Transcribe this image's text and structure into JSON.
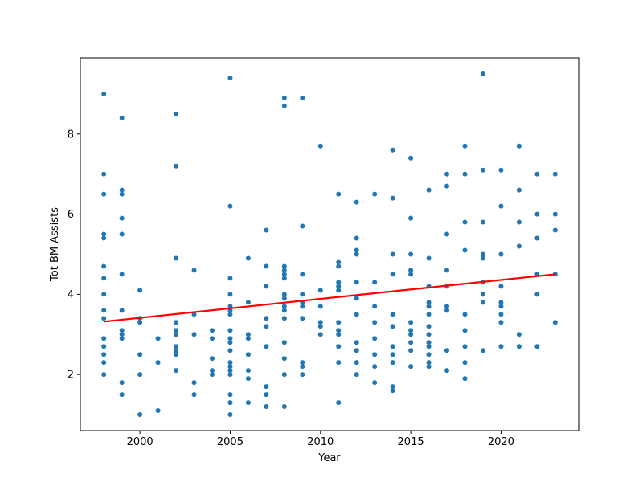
{
  "chart_data": {
    "type": "scatter",
    "title": "",
    "xlabel": "Year",
    "ylabel": "Tot BM Assists",
    "xlim": [
      1996.7,
      2024.3
    ],
    "ylim": [
      0.6,
      9.9
    ],
    "xticks": [
      2000,
      2005,
      2010,
      2015,
      2020
    ],
    "yticks": [
      2,
      4,
      6,
      8
    ],
    "grid": false,
    "colors": {
      "points": "#1f77b4",
      "trend": "#ff0000"
    },
    "trend_line": {
      "x": [
        1998,
        2023
      ],
      "y": [
        3.32,
        4.5
      ]
    },
    "points": [
      [
        1998,
        9.0
      ],
      [
        1998,
        7.0
      ],
      [
        1998,
        6.5
      ],
      [
        1998,
        5.5
      ],
      [
        1998,
        5.4
      ],
      [
        1998,
        4.7
      ],
      [
        1998,
        4.4
      ],
      [
        1998,
        4.0
      ],
      [
        1998,
        3.6
      ],
      [
        1998,
        3.4
      ],
      [
        1998,
        2.9
      ],
      [
        1998,
        2.7
      ],
      [
        1998,
        2.5
      ],
      [
        1998,
        2.3
      ],
      [
        1998,
        2.0
      ],
      [
        1999,
        8.4
      ],
      [
        1999,
        6.6
      ],
      [
        1999,
        6.5
      ],
      [
        1999,
        5.9
      ],
      [
        1999,
        5.5
      ],
      [
        1999,
        4.5
      ],
      [
        1999,
        3.6
      ],
      [
        1999,
        3.1
      ],
      [
        1999,
        3.0
      ],
      [
        1999,
        2.9
      ],
      [
        1999,
        1.8
      ],
      [
        1999,
        1.5
      ],
      [
        2000,
        4.1
      ],
      [
        2000,
        3.4
      ],
      [
        2000,
        3.3
      ],
      [
        2000,
        2.5
      ],
      [
        2000,
        2.0
      ],
      [
        2000,
        1.0
      ],
      [
        2001,
        2.9
      ],
      [
        2001,
        2.3
      ],
      [
        2001,
        1.1
      ],
      [
        2002,
        8.5
      ],
      [
        2002,
        7.2
      ],
      [
        2002,
        4.9
      ],
      [
        2002,
        3.3
      ],
      [
        2002,
        3.1
      ],
      [
        2002,
        3.0
      ],
      [
        2002,
        2.7
      ],
      [
        2002,
        2.6
      ],
      [
        2002,
        2.5
      ],
      [
        2002,
        2.1
      ],
      [
        2003,
        4.6
      ],
      [
        2003,
        3.5
      ],
      [
        2003,
        3.0
      ],
      [
        2003,
        1.8
      ],
      [
        2003,
        1.5
      ],
      [
        2004,
        3.1
      ],
      [
        2004,
        2.9
      ],
      [
        2004,
        2.4
      ],
      [
        2004,
        2.1
      ],
      [
        2004,
        2.0
      ],
      [
        2005,
        9.4
      ],
      [
        2005,
        6.2
      ],
      [
        2005,
        4.4
      ],
      [
        2005,
        4.0
      ],
      [
        2005,
        3.7
      ],
      [
        2005,
        3.6
      ],
      [
        2005,
        3.5
      ],
      [
        2005,
        3.1
      ],
      [
        2005,
        2.9
      ],
      [
        2005,
        2.8
      ],
      [
        2005,
        2.6
      ],
      [
        2005,
        2.3
      ],
      [
        2005,
        2.2
      ],
      [
        2005,
        2.1
      ],
      [
        2005,
        2.0
      ],
      [
        2005,
        1.5
      ],
      [
        2005,
        1.3
      ],
      [
        2005,
        1.0
      ],
      [
        2006,
        4.9
      ],
      [
        2006,
        3.8
      ],
      [
        2006,
        3.0
      ],
      [
        2006,
        2.9
      ],
      [
        2006,
        2.5
      ],
      [
        2006,
        2.1
      ],
      [
        2006,
        1.9
      ],
      [
        2006,
        1.3
      ],
      [
        2007,
        5.6
      ],
      [
        2007,
        4.7
      ],
      [
        2007,
        4.2
      ],
      [
        2007,
        3.4
      ],
      [
        2007,
        3.2
      ],
      [
        2007,
        2.7
      ],
      [
        2007,
        1.7
      ],
      [
        2007,
        1.5
      ],
      [
        2007,
        1.2
      ],
      [
        2008,
        8.9
      ],
      [
        2008,
        8.7
      ],
      [
        2008,
        4.7
      ],
      [
        2008,
        4.6
      ],
      [
        2008,
        4.5
      ],
      [
        2008,
        4.4
      ],
      [
        2008,
        4.0
      ],
      [
        2008,
        3.9
      ],
      [
        2008,
        3.7
      ],
      [
        2008,
        3.6
      ],
      [
        2008,
        3.4
      ],
      [
        2008,
        2.8
      ],
      [
        2008,
        2.4
      ],
      [
        2008,
        2.0
      ],
      [
        2008,
        1.2
      ],
      [
        2009,
        8.9
      ],
      [
        2009,
        5.7
      ],
      [
        2009,
        4.5
      ],
      [
        2009,
        4.0
      ],
      [
        2009,
        3.8
      ],
      [
        2009,
        3.7
      ],
      [
        2009,
        3.4
      ],
      [
        2009,
        2.3
      ],
      [
        2009,
        2.2
      ],
      [
        2009,
        2.0
      ],
      [
        2010,
        7.7
      ],
      [
        2010,
        4.1
      ],
      [
        2010,
        3.7
      ],
      [
        2010,
        3.3
      ],
      [
        2010,
        3.2
      ],
      [
        2010,
        3.0
      ],
      [
        2011,
        6.5
      ],
      [
        2011,
        4.8
      ],
      [
        2011,
        4.7
      ],
      [
        2011,
        4.3
      ],
      [
        2011,
        4.2
      ],
      [
        2011,
        4.1
      ],
      [
        2011,
        3.3
      ],
      [
        2011,
        3.1
      ],
      [
        2011,
        3.0
      ],
      [
        2011,
        2.7
      ],
      [
        2011,
        2.3
      ],
      [
        2011,
        1.3
      ],
      [
        2012,
        6.3
      ],
      [
        2012,
        5.4
      ],
      [
        2012,
        5.1
      ],
      [
        2012,
        5.0
      ],
      [
        2012,
        4.3
      ],
      [
        2012,
        3.9
      ],
      [
        2012,
        3.5
      ],
      [
        2012,
        2.8
      ],
      [
        2012,
        2.6
      ],
      [
        2012,
        2.3
      ],
      [
        2012,
        2.0
      ],
      [
        2013,
        6.5
      ],
      [
        2013,
        4.3
      ],
      [
        2013,
        3.7
      ],
      [
        2013,
        3.3
      ],
      [
        2013,
        2.9
      ],
      [
        2013,
        2.5
      ],
      [
        2013,
        2.2
      ],
      [
        2013,
        1.8
      ],
      [
        2014,
        7.6
      ],
      [
        2014,
        6.4
      ],
      [
        2014,
        5.0
      ],
      [
        2014,
        4.5
      ],
      [
        2014,
        3.5
      ],
      [
        2014,
        3.2
      ],
      [
        2014,
        2.7
      ],
      [
        2014,
        2.5
      ],
      [
        2014,
        2.3
      ],
      [
        2014,
        1.7
      ],
      [
        2014,
        1.6
      ],
      [
        2015,
        7.4
      ],
      [
        2015,
        5.9
      ],
      [
        2015,
        5.0
      ],
      [
        2015,
        4.6
      ],
      [
        2015,
        4.5
      ],
      [
        2015,
        3.3
      ],
      [
        2015,
        3.1
      ],
      [
        2015,
        3.0
      ],
      [
        2015,
        2.8
      ],
      [
        2015,
        2.6
      ],
      [
        2015,
        2.2
      ],
      [
        2016,
        6.6
      ],
      [
        2016,
        4.9
      ],
      [
        2016,
        4.2
      ],
      [
        2016,
        3.8
      ],
      [
        2016,
        3.7
      ],
      [
        2016,
        3.5
      ],
      [
        2016,
        3.2
      ],
      [
        2016,
        3.0
      ],
      [
        2016,
        2.8
      ],
      [
        2016,
        2.7
      ],
      [
        2016,
        2.5
      ],
      [
        2016,
        2.3
      ],
      [
        2016,
        2.2
      ],
      [
        2017,
        7.0
      ],
      [
        2017,
        6.7
      ],
      [
        2017,
        5.5
      ],
      [
        2017,
        4.6
      ],
      [
        2017,
        4.2
      ],
      [
        2017,
        3.7
      ],
      [
        2017,
        3.6
      ],
      [
        2017,
        2.6
      ],
      [
        2017,
        2.1
      ],
      [
        2018,
        7.7
      ],
      [
        2018,
        7.0
      ],
      [
        2018,
        5.8
      ],
      [
        2018,
        5.1
      ],
      [
        2018,
        3.5
      ],
      [
        2018,
        3.1
      ],
      [
        2018,
        2.7
      ],
      [
        2018,
        2.3
      ],
      [
        2018,
        1.9
      ],
      [
        2019,
        9.5
      ],
      [
        2019,
        7.1
      ],
      [
        2019,
        5.8
      ],
      [
        2019,
        5.0
      ],
      [
        2019,
        4.9
      ],
      [
        2019,
        4.3
      ],
      [
        2019,
        4.0
      ],
      [
        2019,
        3.8
      ],
      [
        2019,
        2.6
      ],
      [
        2020,
        7.1
      ],
      [
        2020,
        6.2
      ],
      [
        2020,
        5.0
      ],
      [
        2020,
        4.2
      ],
      [
        2020,
        3.8
      ],
      [
        2020,
        3.7
      ],
      [
        2020,
        3.5
      ],
      [
        2020,
        3.3
      ],
      [
        2020,
        2.7
      ],
      [
        2021,
        7.7
      ],
      [
        2021,
        6.6
      ],
      [
        2021,
        5.8
      ],
      [
        2021,
        5.2
      ],
      [
        2021,
        3.0
      ],
      [
        2021,
        2.7
      ],
      [
        2022,
        7.0
      ],
      [
        2022,
        6.0
      ],
      [
        2022,
        5.4
      ],
      [
        2022,
        4.5
      ],
      [
        2022,
        4.0
      ],
      [
        2022,
        2.7
      ],
      [
        2023,
        7.0
      ],
      [
        2023,
        6.0
      ],
      [
        2023,
        5.6
      ],
      [
        2023,
        4.5
      ],
      [
        2023,
        3.3
      ]
    ]
  }
}
